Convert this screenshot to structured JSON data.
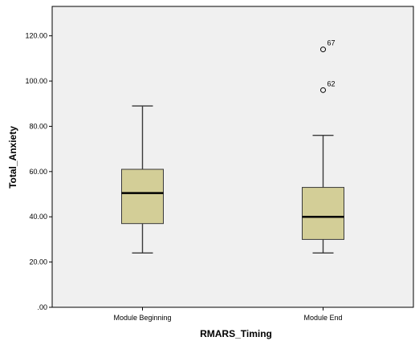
{
  "chart_data": {
    "type": "boxplot",
    "xlabel": "RMARS_Timing",
    "ylabel": "Total_Anxiety",
    "ylim": [
      0,
      133
    ],
    "yticks": [
      0,
      20,
      40,
      60,
      80,
      100,
      120
    ],
    "ytick_labels": [
      ".00",
      "20.00",
      "40.00",
      "60.00",
      "80.00",
      "100.00",
      "120.00"
    ],
    "categories": [
      "Module Beginning",
      "Module End"
    ],
    "boxes": [
      {
        "category": "Module Beginning",
        "whisker_low": 24,
        "q1": 37,
        "median": 50.5,
        "q3": 61,
        "whisker_high": 89,
        "outliers": []
      },
      {
        "category": "Module End",
        "whisker_low": 24,
        "q1": 30,
        "median": 40,
        "q3": 53,
        "whisker_high": 76,
        "outliers": [
          {
            "value": 114,
            "label": "67"
          },
          {
            "value": 96,
            "label": "62"
          }
        ]
      }
    ],
    "grid": false,
    "legend": "none",
    "colors": {
      "plot_background": "#f0f0f0",
      "box_fill": "#d3ce97",
      "box_stroke": "#3a3a3a",
      "median": "#000000"
    }
  }
}
